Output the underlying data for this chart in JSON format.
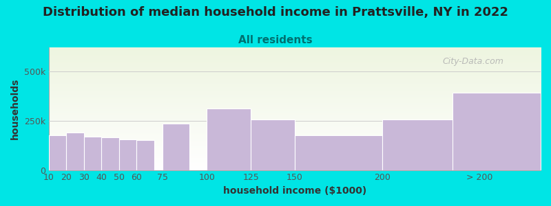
{
  "title": "Distribution of median household income in Prattsville, NY in 2022",
  "subtitle": "All residents",
  "xlabel": "household income ($1000)",
  "ylabel": "households",
  "bar_labels": [
    "10",
    "20",
    "30",
    "40",
    "50",
    "60",
    "75",
    "100",
    "125",
    "150",
    "200",
    "> 200"
  ],
  "bar_values": [
    175000,
    190000,
    170000,
    165000,
    155000,
    150000,
    235000,
    310000,
    255000,
    175000,
    255000,
    390000
  ],
  "bar_color": "#c9b8d8",
  "bar_edgecolor": "#ffffff",
  "background_color": "#00e5e5",
  "plot_bg_top": "#eef5e0",
  "plot_bg_bottom": "#ffffff",
  "ytick_labels": [
    "0",
    "250k",
    "500k"
  ],
  "ytick_values": [
    0,
    250000,
    500000
  ],
  "ylim": [
    0,
    620000
  ],
  "title_fontsize": 13,
  "subtitle_fontsize": 11,
  "subtitle_color": "#007070",
  "axis_label_fontsize": 10,
  "watermark_text": "City-Data.com",
  "watermark_color": "#b0b0b0",
  "bar_positions": [
    10,
    20,
    30,
    40,
    50,
    60,
    75,
    100,
    125,
    150,
    200,
    240
  ],
  "bar_widths": [
    10,
    10,
    10,
    10,
    10,
    10,
    15,
    25,
    25,
    50,
    50,
    50
  ],
  "xtick_positions": [
    10,
    20,
    30,
    40,
    50,
    60,
    75,
    100,
    125,
    150,
    200,
    255
  ],
  "xlim": [
    10,
    290
  ]
}
